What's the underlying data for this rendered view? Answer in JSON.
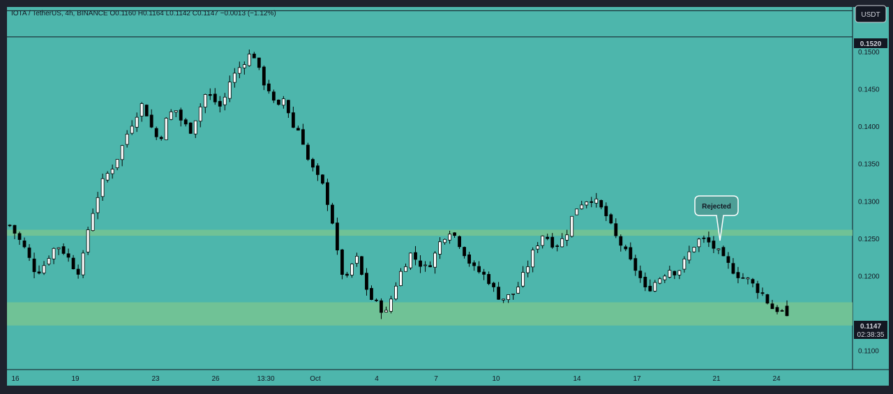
{
  "header": {
    "symbol_line": "IOTA / TetherUS, 4h, BINANCE  O0.1160  H0.1164  L0.1142  C0.1147  −0.0013 (−1.12%)"
  },
  "currency_button": "USDT",
  "callout": "Rejected",
  "price_labels": {
    "top_line": "0.1520",
    "last_price": "0.1147",
    "countdown": "02:38:35"
  },
  "colors": {
    "background": "#4db6ac",
    "zone": "#74c393",
    "panel": "#1e222d",
    "candle_up_fill": "#ffffff",
    "candle_down_fill": "#000000",
    "candle_outline": "#000000"
  },
  "chart_data": {
    "type": "candlestick",
    "title": "",
    "ylim": [
      0.1075,
      0.156
    ],
    "y_ticks": [
      "0.1500",
      "0.1450",
      "0.1400",
      "0.1350",
      "0.1300",
      "0.1250",
      "0.1200",
      "0.1100"
    ],
    "x_ticks": [
      "16",
      "19",
      "23",
      "26",
      "13:30",
      "Oct",
      "4",
      "7",
      "10",
      "14",
      "17",
      "21",
      "24"
    ],
    "horizontal_lines": [
      0.152,
      0.1555
    ],
    "zones": [
      {
        "name": "upper",
        "from": 0.1254,
        "to": 0.1262
      },
      {
        "name": "lower",
        "from": 0.1134,
        "to": 0.1165
      }
    ],
    "last": {
      "open": 0.116,
      "high": 0.1164,
      "low": 0.1142,
      "close": 0.1147
    },
    "close_path": [
      0.1268,
      0.1252,
      0.1235,
      0.121,
      0.1208,
      0.1228,
      0.1242,
      0.1232,
      0.1215,
      0.1205,
      0.1265,
      0.1302,
      0.133,
      0.1345,
      0.1365,
      0.1392,
      0.1415,
      0.1432,
      0.14,
      0.138,
      0.141,
      0.1425,
      0.1405,
      0.1395,
      0.142,
      0.1445,
      0.1435,
      0.1425,
      0.146,
      0.1475,
      0.149,
      0.15,
      0.1465,
      0.145,
      0.142,
      0.144,
      0.14,
      0.1395,
      0.1355,
      0.1335,
      0.1318,
      0.128,
      0.121,
      0.1195,
      0.123,
      0.1195,
      0.117,
      0.116,
      0.115,
      0.1185,
      0.121,
      0.123,
      0.122,
      0.121,
      0.1225,
      0.125,
      0.1262,
      0.125,
      0.123,
      0.121,
      0.1205,
      0.1195,
      0.1175,
      0.117,
      0.1175,
      0.119,
      0.1215,
      0.124,
      0.1258,
      0.1245,
      0.1242,
      0.126,
      0.129,
      0.13,
      0.1305,
      0.1295,
      0.128,
      0.1255,
      0.124,
      0.122,
      0.1205,
      0.118,
      0.119,
      0.12,
      0.121,
      0.1205,
      0.122,
      0.124,
      0.125,
      0.1245,
      0.1235,
      0.122,
      0.121,
      0.12,
      0.1195,
      0.1185,
      0.1175,
      0.1158,
      0.1155,
      0.1147
    ]
  }
}
